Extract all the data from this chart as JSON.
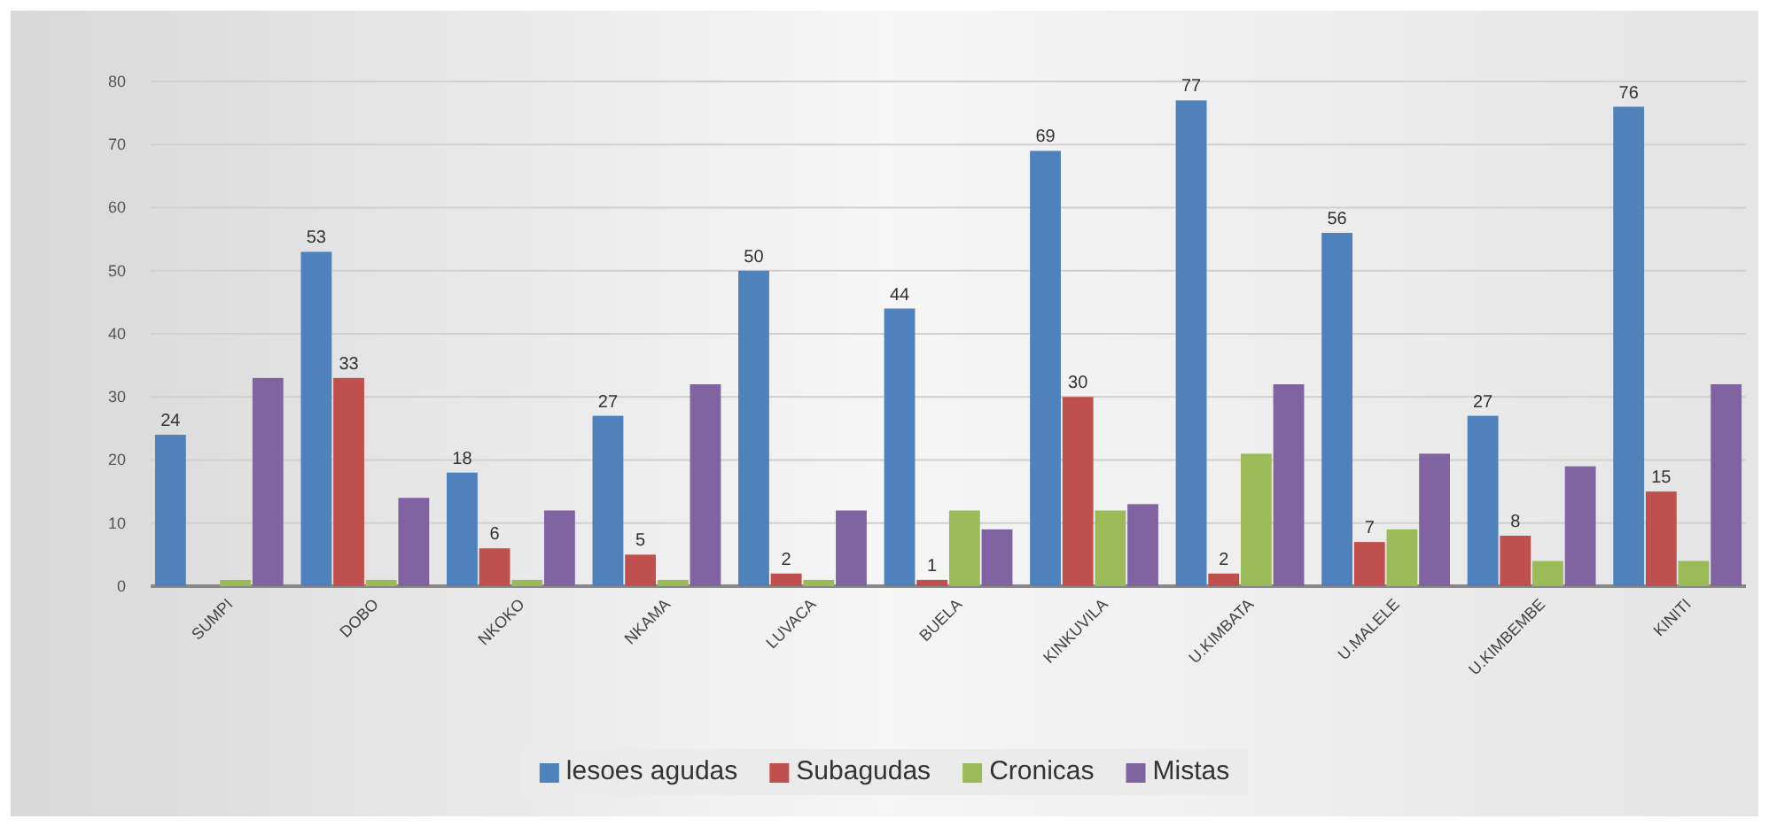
{
  "chart_data": {
    "type": "bar",
    "categories": [
      "SUMPI",
      "DOBO",
      "NKOKO",
      "NKAMA",
      "LUVACA",
      "BUELA",
      "KINKUVILA",
      "U.KIMBATA",
      "U.MALELE",
      "U.KIMBEMBE",
      "KINITI"
    ],
    "series": [
      {
        "name": "lesoes agudas",
        "color": "#4f81bd",
        "values": [
          24,
          53,
          18,
          27,
          50,
          44,
          69,
          77,
          56,
          27,
          76
        ],
        "value_labels": [
          "24",
          "53",
          "18",
          "27",
          "50",
          "44",
          "69",
          "77",
          "56",
          "27",
          "76"
        ]
      },
      {
        "name": "Subagudas",
        "color": "#c0504d",
        "values": [
          0,
          33,
          6,
          5,
          2,
          1,
          30,
          2,
          7,
          8,
          15
        ],
        "value_labels": [
          null,
          "33",
          "6",
          "5",
          "2",
          "1",
          "30",
          "2",
          "7",
          "8",
          "15"
        ]
      },
      {
        "name": "Cronicas",
        "color": "#9bbb59",
        "values": [
          1,
          1,
          1,
          1,
          1,
          12,
          12,
          21,
          9,
          4,
          4
        ]
      },
      {
        "name": "Mistas",
        "color": "#8064a2",
        "values": [
          33,
          14,
          12,
          32,
          12,
          9,
          13,
          32,
          21,
          19,
          32
        ]
      }
    ],
    "ylim": [
      0,
      80
    ],
    "yticks": [
      0,
      10,
      20,
      30,
      40,
      50,
      60,
      70,
      80
    ],
    "grid": "y",
    "legend": "bottom"
  }
}
